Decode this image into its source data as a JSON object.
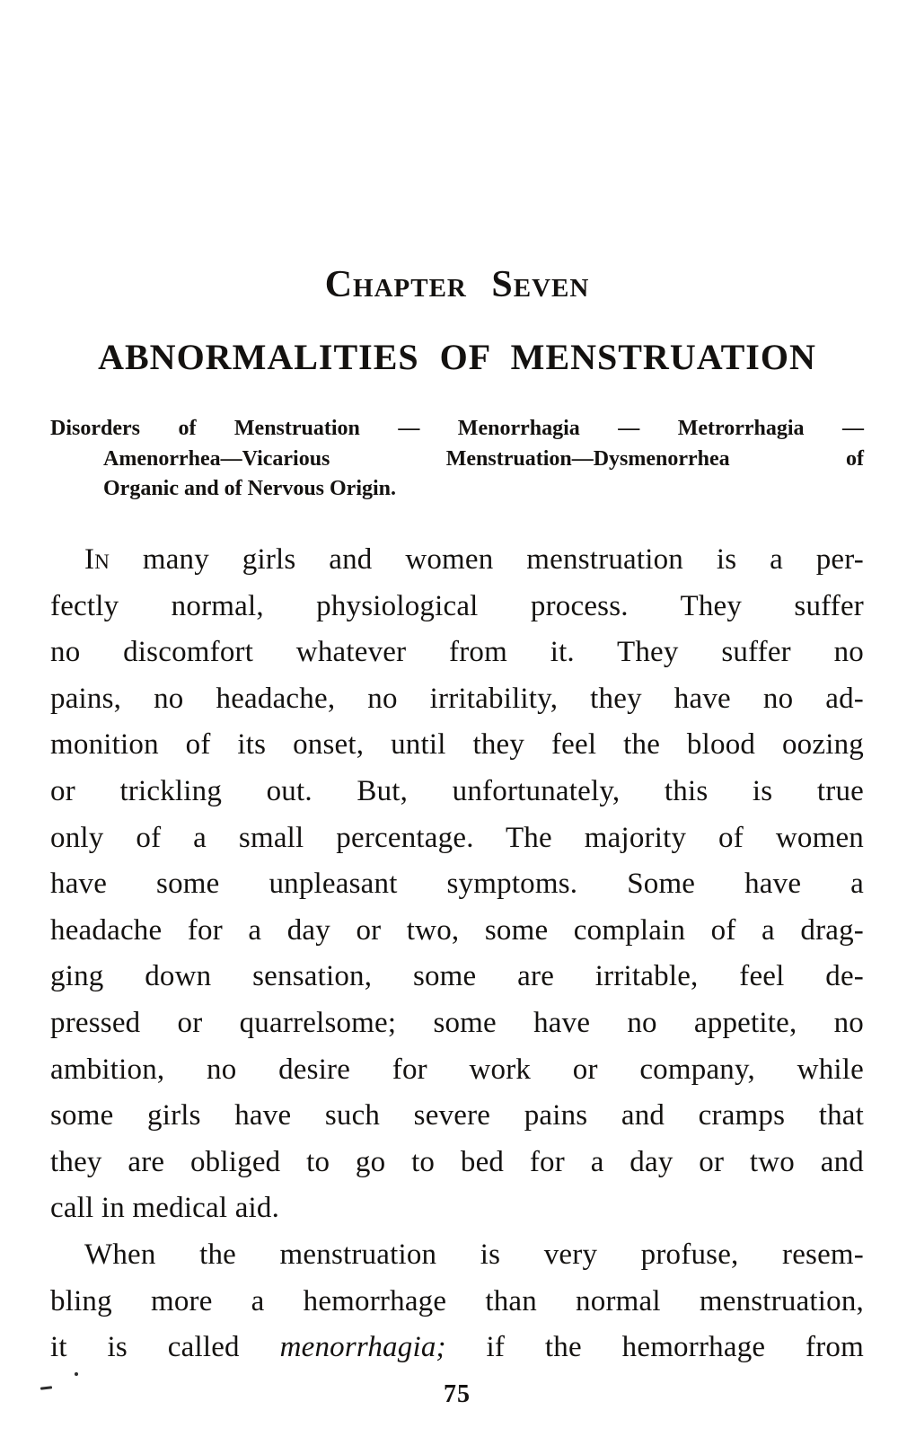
{
  "document": {
    "chapter_label": "Chapter Seven",
    "title": "ABNORMALITIES OF MENSTRUATION",
    "synopsis": {
      "line_1": "Disorders of Menstruation — Menorrhagia — Metrorrhagia —",
      "line_2": "Amenorrhea—Vicarious Menstruation—Dysmenorrhea of",
      "line_3": "Organic and of Nervous Origin."
    },
    "paragraph_1": {
      "lead_word": "In",
      "lines": [
        " many girls and women menstruation is a per-",
        "fectly normal, physiological process. They suffer",
        "no discomfort whatever from it. They suffer no",
        "pains, no headache, no irritability, they have no ad-",
        "monition of its onset, until they feel the blood oozing",
        "or trickling out. But, unfortunately, this is true",
        "only of a small percentage. The majority of women",
        "have some unpleasant symptoms. Some have a",
        "headache for a day or two, some complain of a drag-",
        "ging down sensation, some are irritable, feel de-",
        "pressed or quarrelsome; some have no appetite, no",
        "ambition, no desire for work or company, while",
        "some girls have such severe pains and cramps that",
        "they are obliged to go to bed for a day or two and",
        "call in medical aid."
      ]
    },
    "paragraph_2": {
      "lines": [
        "When the menstruation is very profuse, resem-",
        "bling more a hemorrhage than normal menstruation,"
      ],
      "line_3": {
        "pre": "it is called ",
        "italic": "menorrhagia;",
        "post": " if the hemorrhage from"
      }
    },
    "page_number": "75"
  }
}
